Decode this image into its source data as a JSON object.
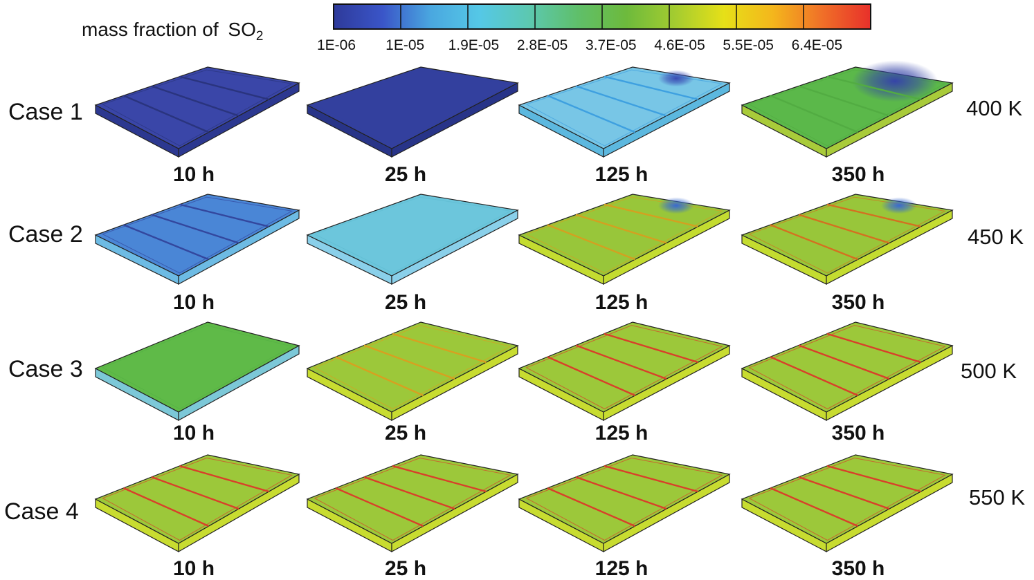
{
  "legend": {
    "title_main": "mass fraction of ",
    "title_species": "SO",
    "title_subscript": "2",
    "ticks": [
      "1E-06",
      "1E-05",
      "1.9E-05",
      "2.8E-05",
      "3.7E-05",
      "4.6E-05",
      "5.5E-05",
      "6.4E-05"
    ],
    "colors": [
      "#2e3a9a",
      "#3a55c8",
      "#4aa8e0",
      "#55c8e6",
      "#5cc8b0",
      "#5fbf6a",
      "#6dba3c",
      "#a4cc30",
      "#e6e018",
      "#f4b61c",
      "#f07028",
      "#e8302a"
    ]
  },
  "rows": [
    {
      "case": "Case 1",
      "temperature": "400 K",
      "panels": [
        {
          "time": "10 h",
          "top": "#3a46a8",
          "side": "#2c3890",
          "line": "#2a347e",
          "lines": 3,
          "hotspot": false
        },
        {
          "time": "25 h",
          "top": "#33409e",
          "side": "#283488",
          "line": "#33409e",
          "lines": 0,
          "hotspot": false
        },
        {
          "time": "125 h",
          "top": "#78c6e6",
          "side": "#5cb8df",
          "line": "#3ea0e0",
          "lines": 3,
          "hotspot": true,
          "hotspot_color": "#3a4cb4"
        },
        {
          "time": "350 h",
          "top": "#5bb84a",
          "side": "#a9cb3a",
          "line": "#52ac42",
          "lines": 3,
          "hotspot": true,
          "hotspot_color": "#3644a8"
        }
      ]
    },
    {
      "case": "Case 2",
      "temperature": "450 K",
      "panels": [
        {
          "time": "10 h",
          "top": "#4a86d6",
          "side": "#6dbbe4",
          "line": "#33479e",
          "lines": 3,
          "hotspot": false
        },
        {
          "time": "25 h",
          "top": "#6cc6dc",
          "side": "#8ad0ea",
          "line": "#5fbcd2",
          "lines": 0,
          "hotspot": false
        },
        {
          "time": "125 h",
          "top": "#98c63a",
          "side": "#c4dc30",
          "line": "#d4a020",
          "lines": 3,
          "hotspot": true,
          "hotspot_color": "#3a6ad0"
        },
        {
          "time": "350 h",
          "top": "#98c63a",
          "side": "#c4dc30",
          "line": "#d47020",
          "lines": 3,
          "hotspot": true,
          "hotspot_color": "#3a6ad0"
        }
      ]
    },
    {
      "case": "Case 3",
      "temperature": "500 K",
      "panels": [
        {
          "time": "10 h",
          "top": "#5fba48",
          "side": "#7cc8d8",
          "line": "#55b045",
          "lines": 0,
          "hotspot": false
        },
        {
          "time": "25 h",
          "top": "#9cc83a",
          "side": "#c8dc30",
          "line": "#d8a020",
          "lines": 3,
          "hotspot": false
        },
        {
          "time": "125 h",
          "top": "#9cc83a",
          "side": "#c8dc30",
          "line": "#d8402a",
          "lines": 3,
          "hotspot": false
        },
        {
          "time": "350 h",
          "top": "#9cc83a",
          "side": "#c8dc30",
          "line": "#d8402a",
          "lines": 3,
          "hotspot": false
        }
      ]
    },
    {
      "case": "Case 4",
      "temperature": "550 K",
      "panels": [
        {
          "time": "10 h",
          "top": "#9cc83a",
          "side": "#c8dc30",
          "line": "#d8402a",
          "lines": 3,
          "hotspot": false
        },
        {
          "time": "25 h",
          "top": "#9cc83a",
          "side": "#c8dc30",
          "line": "#d8402a",
          "lines": 3,
          "hotspot": false
        },
        {
          "time": "125 h",
          "top": "#9cc83a",
          "side": "#c8dc30",
          "line": "#d8402a",
          "lines": 3,
          "hotspot": false
        },
        {
          "time": "350 h",
          "top": "#9cc83a",
          "side": "#c8dc30",
          "line": "#d8402a",
          "lines": 3,
          "hotspot": false
        }
      ]
    }
  ]
}
